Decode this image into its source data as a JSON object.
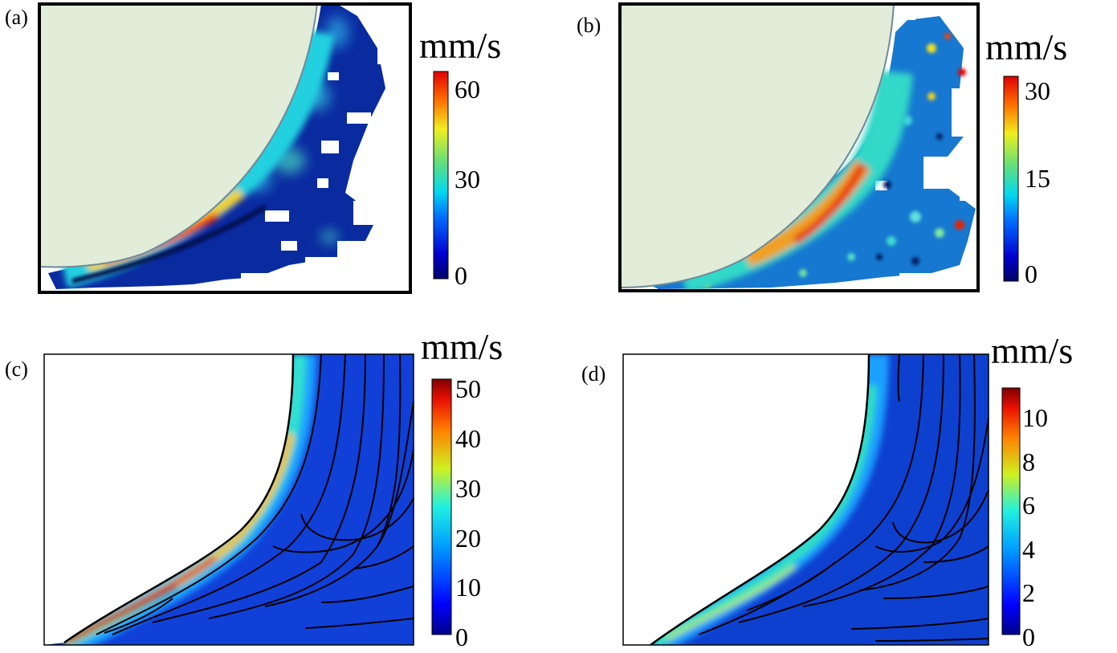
{
  "panels": [
    {
      "label": "(a)",
      "colorbar": {
        "unit": "mm/s",
        "min": 0,
        "max": 60,
        "ticks": [
          "0",
          "30",
          "60"
        ]
      }
    },
    {
      "label": "(b)",
      "colorbar": {
        "unit": "mm/s",
        "min": 0,
        "max": 30,
        "ticks": [
          "0",
          "15",
          "30"
        ]
      }
    },
    {
      "label": "(c)",
      "colorbar": {
        "unit": "mm/s",
        "min": 0,
        "max": 50,
        "ticks": [
          "0",
          "10",
          "20",
          "30",
          "40",
          "50"
        ]
      }
    },
    {
      "label": "(d)",
      "colorbar": {
        "unit": "mm/s",
        "min": 0,
        "max": 11.3,
        "ticks": [
          "0",
          "2",
          "4",
          "6",
          "8",
          "10"
        ]
      }
    }
  ],
  "colors": {
    "sphere_fill": "#e1ecd9",
    "sphere_edge": "#6f8a9a",
    "field_background": "#0a2aa8"
  }
}
